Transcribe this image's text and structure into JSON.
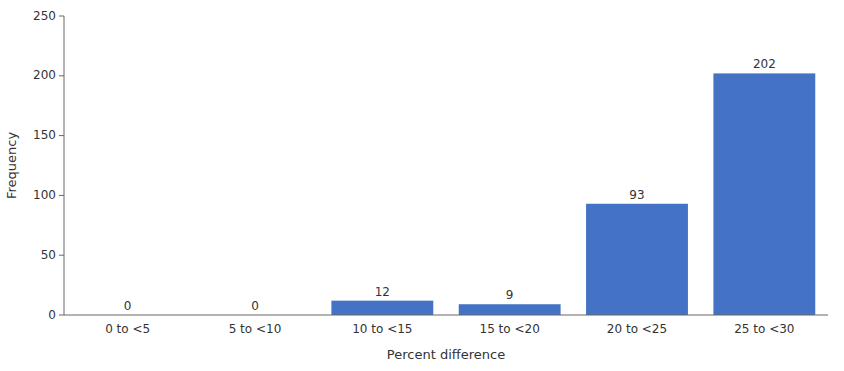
{
  "chart_data": {
    "type": "bar",
    "categories": [
      "0 to <5",
      "5 to <10",
      "10 to <15",
      "15 to <20",
      "20 to <25",
      "25 to <30"
    ],
    "values": [
      0,
      0,
      12,
      9,
      93,
      202
    ],
    "color": "#4472C4",
    "xlabel": "Percent difference",
    "ylabel": "Frequency",
    "ylim": [
      0,
      250
    ],
    "yticks": [
      0,
      50,
      100,
      150,
      200,
      250
    ],
    "grid": false,
    "data_labels": true
  }
}
